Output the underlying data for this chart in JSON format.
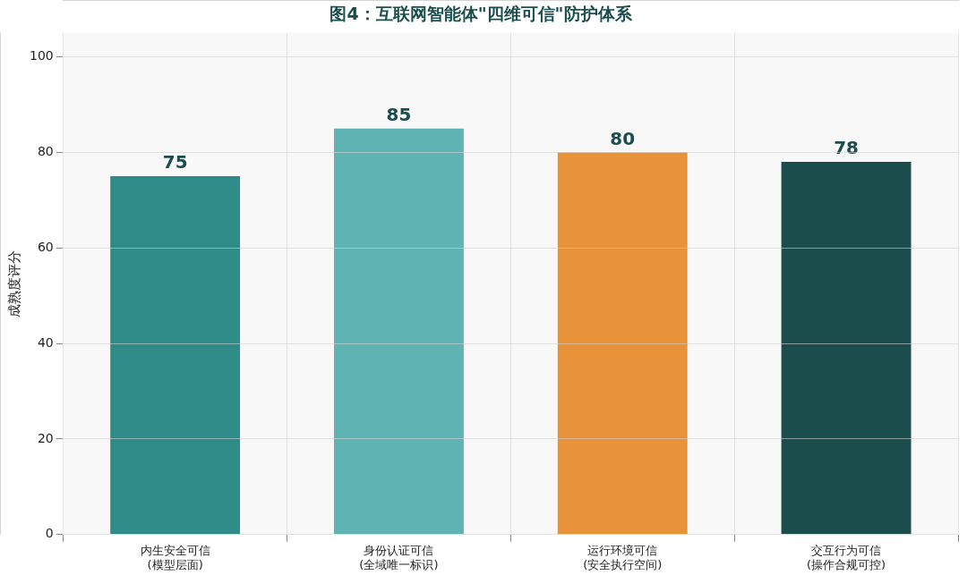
{
  "chart_data": {
    "type": "bar",
    "title": "图4：互联网智能体\"四维可信\"防护体系",
    "ylabel": "成熟度评分",
    "categories": [
      "内生安全可信\n(模型层面)",
      "身份认证可信\n(全域唯一标识)",
      "运行环境可信\n(安全执行空间)",
      "交互行为可信\n(操作合规可控)"
    ],
    "values": [
      75,
      85,
      80,
      78
    ],
    "colors": [
      "#2e8b87",
      "#5fb3b3",
      "#e8923a",
      "#1b4d4d"
    ],
    "ylim": [
      0,
      105
    ],
    "yticks": [
      0,
      20,
      40,
      60,
      80,
      100
    ],
    "grid": true,
    "data_labels": true
  }
}
